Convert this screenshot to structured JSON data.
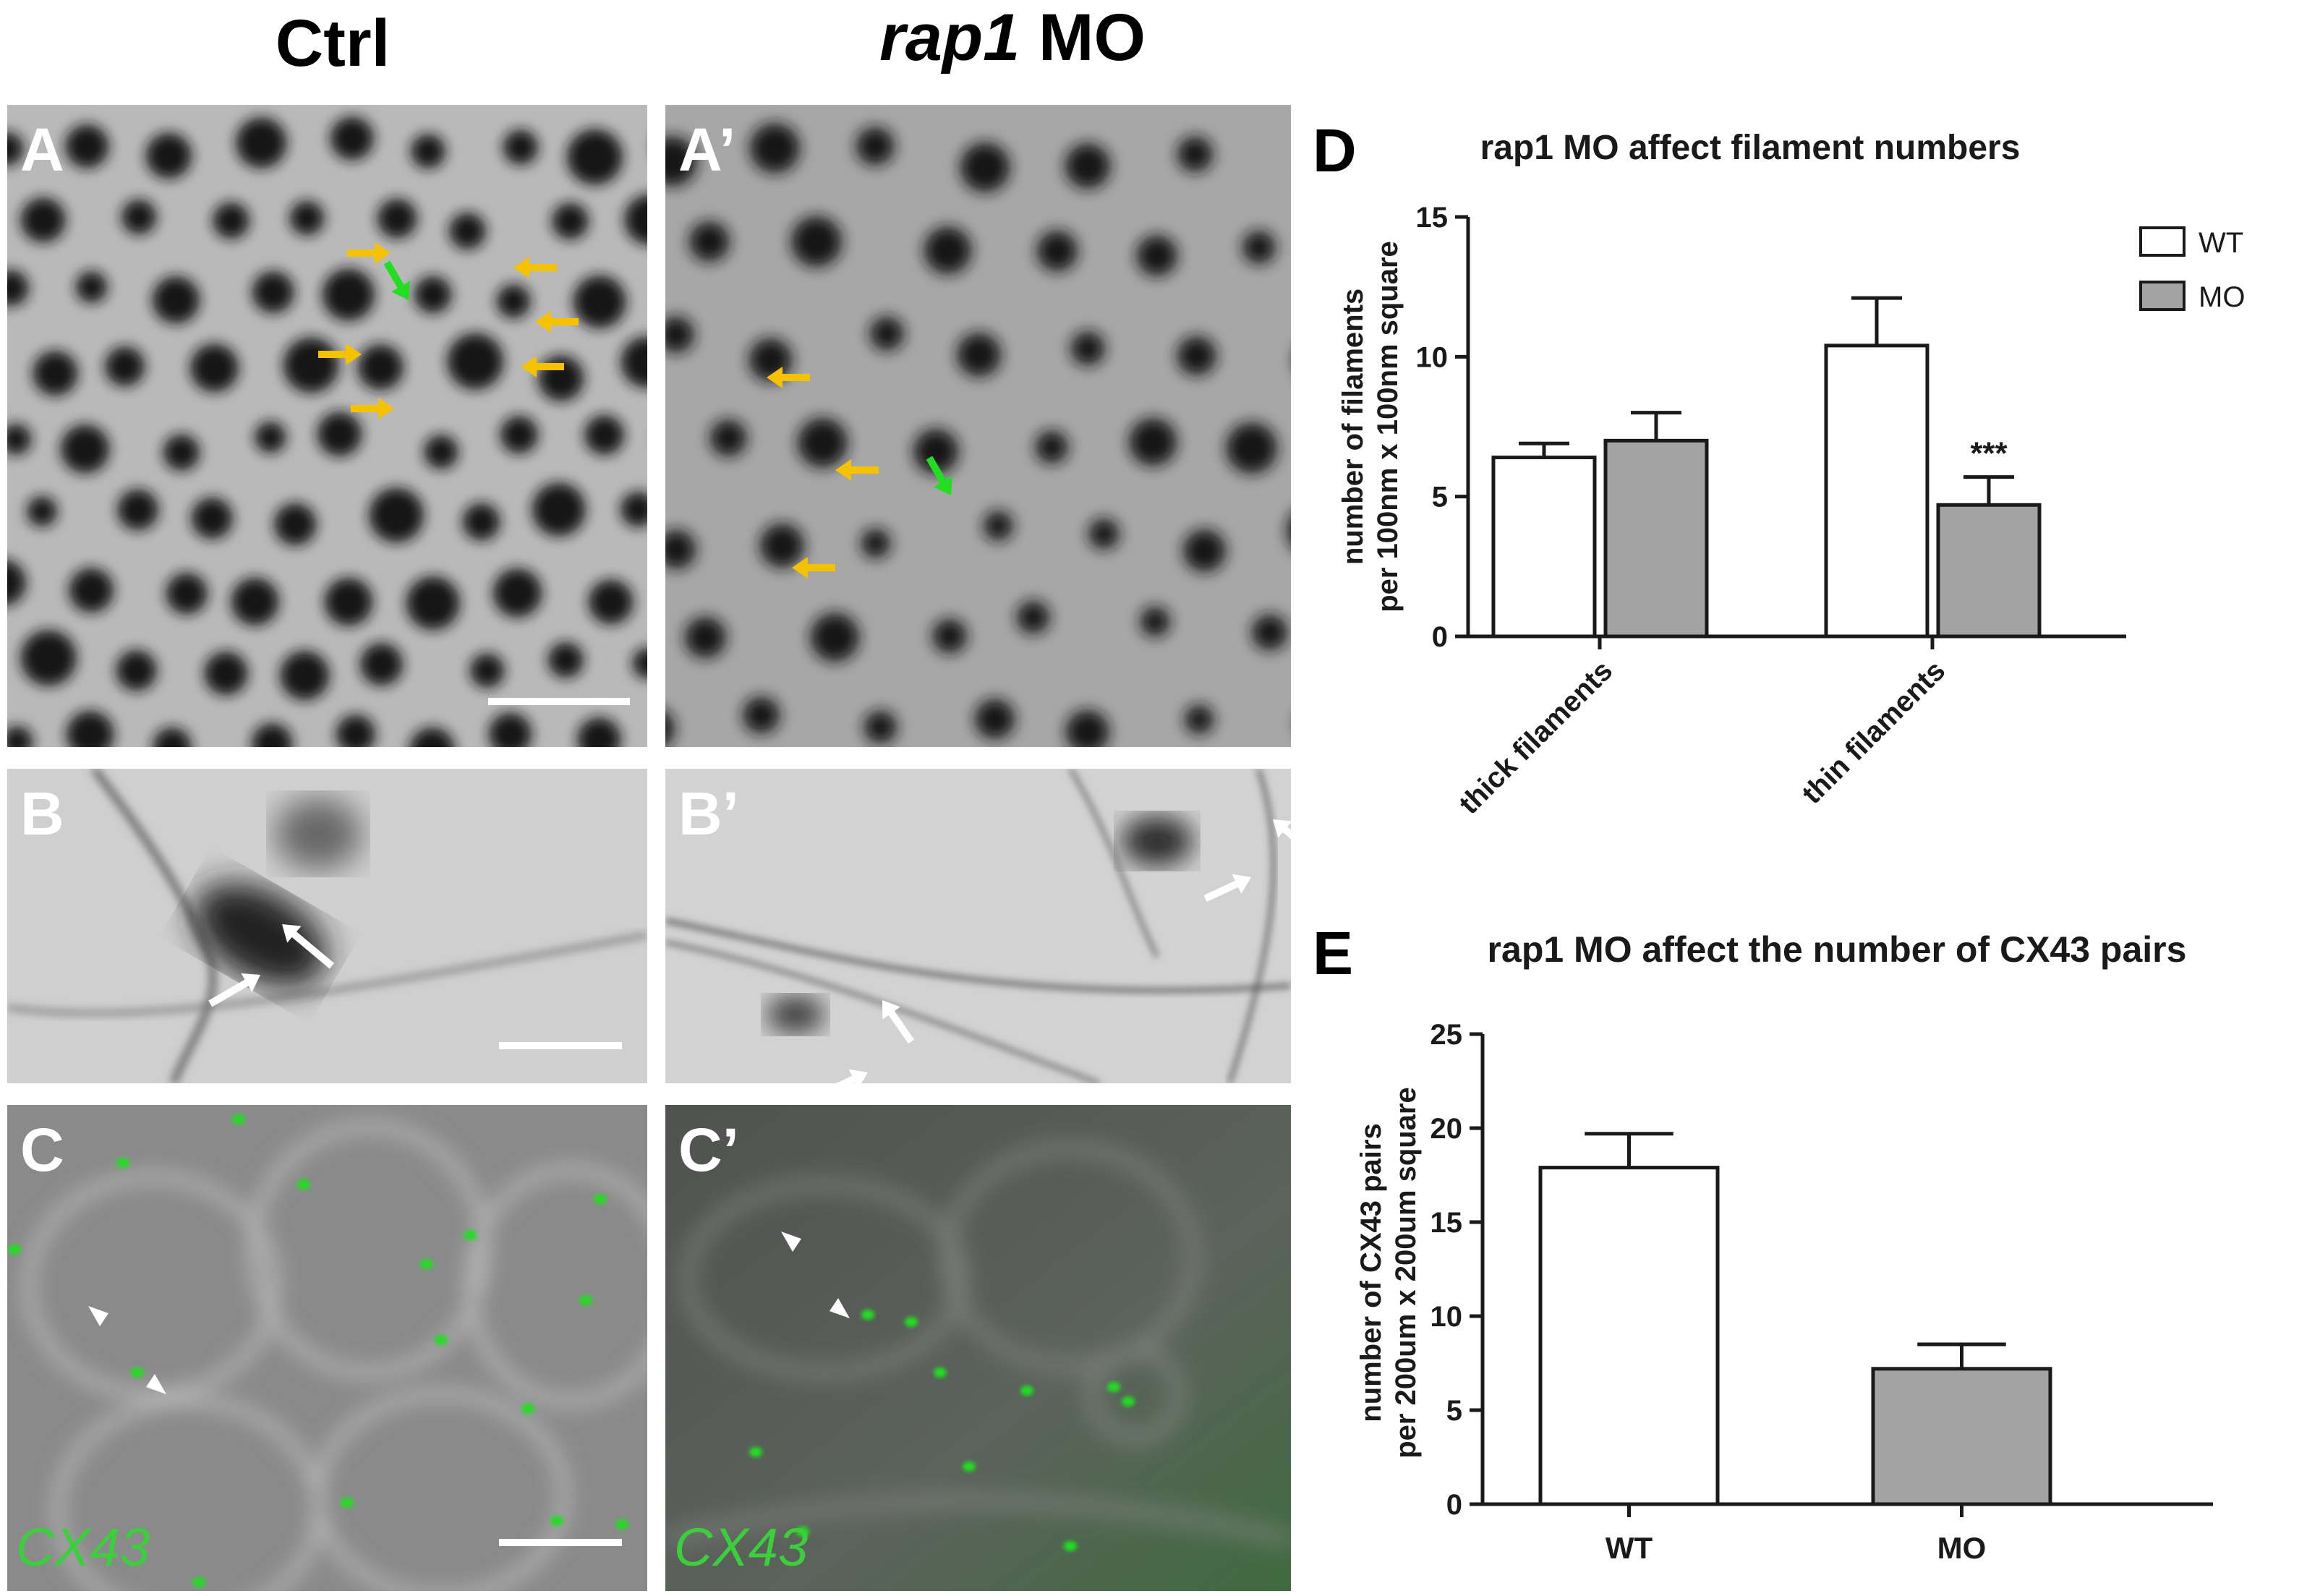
{
  "columns": {
    "ctrl": "Ctrl",
    "mo_italic": "rap1",
    "mo_rest": " MO"
  },
  "panels": {
    "A": "A",
    "A_prime": "A’",
    "B": "B",
    "B_prime": "B’",
    "C": "C",
    "C_prime": "C’",
    "D": "D",
    "E": "E"
  },
  "cx_label": "CX43",
  "colors": {
    "green_marker": "#22dd22",
    "yellow_arrow": "#f5c200",
    "bar_wt": "#ffffff",
    "bar_mo": "#a3a3a3",
    "axis": "#1a1a1a"
  },
  "chart_data": [
    {
      "id": "D",
      "type": "bar",
      "title": "rap1 MO affect filament numbers",
      "ylabel_line1": "number of filaments",
      "ylabel_line2": "per 100nm x 100nm square",
      "categories": [
        "thick filaments",
        "thin filaments"
      ],
      "series": [
        {
          "name": "WT",
          "color": "#ffffff",
          "values": [
            6.4,
            10.4
          ],
          "errors": [
            0.5,
            1.7
          ]
        },
        {
          "name": "MO",
          "color": "#a3a3a3",
          "values": [
            7.0,
            4.7
          ],
          "errors": [
            1.0,
            1.0
          ]
        }
      ],
      "annotations": [
        {
          "category": "thin filaments",
          "series": "MO",
          "text": "***"
        }
      ],
      "ylim": [
        0,
        15
      ],
      "yticks": [
        0,
        5,
        10,
        15
      ],
      "legend": "top-right",
      "grid": false
    },
    {
      "id": "E",
      "type": "bar",
      "title": "rap1 MO affect the number of CX43 pairs",
      "ylabel_line1": "number of CX43 pairs",
      "ylabel_line2": "per 200um x 200um square",
      "categories": [
        "WT",
        "MO"
      ],
      "values": [
        17.9,
        7.2
      ],
      "errors": [
        1.8,
        1.3
      ],
      "colors": [
        "#ffffff",
        "#a3a3a3"
      ],
      "ylim": [
        0,
        25
      ],
      "yticks": [
        0,
        5,
        10,
        15,
        20,
        25
      ],
      "grid": false
    }
  ]
}
